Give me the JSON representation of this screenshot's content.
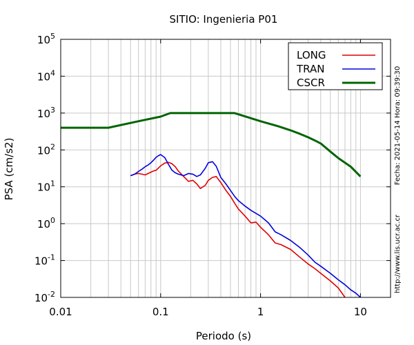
{
  "chart_data": {
    "type": "line",
    "title": "SITIO: Ingenieria P01",
    "xlabel": "Periodo (s)",
    "ylabel": "PSA (cm/s2)",
    "x_scale": "log",
    "y_scale": "log",
    "xlim": [
      0.01,
      20
    ],
    "ylim": [
      0.01,
      100000
    ],
    "grid": true,
    "legend_position": "top-right",
    "x_ticks": [
      {
        "value": 0.01,
        "label": "0.01"
      },
      {
        "value": 0.1,
        "label": "0.1"
      },
      {
        "value": 1,
        "label": "1"
      },
      {
        "value": 10,
        "label": "10"
      }
    ],
    "y_ticks": [
      {
        "value": 100000,
        "base": "10",
        "exp": "5"
      },
      {
        "value": 10000,
        "base": "10",
        "exp": "4"
      },
      {
        "value": 1000,
        "base": "10",
        "exp": "3"
      },
      {
        "value": 100,
        "base": "10",
        "exp": "2"
      },
      {
        "value": 10,
        "base": "10",
        "exp": "1"
      },
      {
        "value": 1,
        "base": "10",
        "exp": "0"
      },
      {
        "value": 0.1,
        "base": "10",
        "exp": "-1"
      },
      {
        "value": 0.01,
        "base": "10",
        "exp": "-2"
      }
    ],
    "side_text_right": "Fecha: 2021-05-14 Hora: 09:39:30",
    "side_text_bottom": "http://www.lis.ucr.ac.cr",
    "series": [
      {
        "name": "LONG",
        "color": "#e00000",
        "x": [
          0.05,
          0.055,
          0.06,
          0.065,
          0.07,
          0.075,
          0.08,
          0.085,
          0.09,
          0.1,
          0.11,
          0.12,
          0.13,
          0.14,
          0.15,
          0.17,
          0.19,
          0.21,
          0.23,
          0.25,
          0.28,
          0.3,
          0.33,
          0.36,
          0.4,
          0.45,
          0.5,
          0.55,
          0.6,
          0.7,
          0.8,
          0.9,
          1.0,
          1.2,
          1.4,
          1.6,
          2.0,
          2.5,
          3.0,
          3.5,
          4.0,
          5.0,
          6.0,
          7.0
        ],
        "y": [
          20,
          22,
          23,
          22,
          21,
          23,
          25,
          27,
          28,
          37,
          44,
          46,
          42,
          35,
          27,
          19,
          14,
          15,
          12,
          9,
          11,
          15,
          18,
          19,
          13,
          8,
          5.5,
          3.6,
          2.5,
          1.6,
          1.05,
          1.1,
          0.8,
          0.5,
          0.3,
          0.27,
          0.2,
          0.12,
          0.08,
          0.06,
          0.045,
          0.028,
          0.018,
          0.01
        ]
      },
      {
        "name": "TRAN",
        "color": "#0000dd",
        "x": [
          0.05,
          0.055,
          0.06,
          0.065,
          0.07,
          0.075,
          0.08,
          0.085,
          0.09,
          0.095,
          0.1,
          0.11,
          0.12,
          0.13,
          0.14,
          0.15,
          0.17,
          0.19,
          0.21,
          0.23,
          0.25,
          0.28,
          0.3,
          0.33,
          0.36,
          0.4,
          0.45,
          0.5,
          0.55,
          0.6,
          0.7,
          0.8,
          1.0,
          1.2,
          1.4,
          1.6,
          2.0,
          2.5,
          3.0,
          3.5,
          4.0,
          5.0,
          6.0,
          7.0,
          8.0,
          9.0,
          10.0
        ],
        "y": [
          20,
          22,
          26,
          30,
          35,
          39,
          45,
          53,
          63,
          70,
          75,
          62,
          40,
          28,
          24,
          22,
          20,
          23,
          22,
          19,
          21,
          32,
          45,
          48,
          36,
          18,
          12,
          8,
          5.5,
          4.2,
          3,
          2.3,
          1.6,
          1.05,
          0.6,
          0.5,
          0.35,
          0.22,
          0.14,
          0.09,
          0.07,
          0.045,
          0.03,
          0.022,
          0.016,
          0.013,
          0.01
        ]
      },
      {
        "name": "CSCR",
        "color": "#006400",
        "x": [
          0.01,
          0.03,
          0.06,
          0.1,
          0.125,
          0.2,
          0.3,
          0.4,
          0.55,
          1,
          1.5,
          2,
          2.5,
          3,
          3.5,
          4,
          5,
          6,
          8,
          10
        ],
        "y": [
          400,
          400,
          600,
          800,
          1000,
          1000,
          1000,
          1000,
          1000,
          600,
          440,
          340,
          270,
          220,
          180,
          150,
          90,
          60,
          35,
          19
        ]
      }
    ]
  }
}
